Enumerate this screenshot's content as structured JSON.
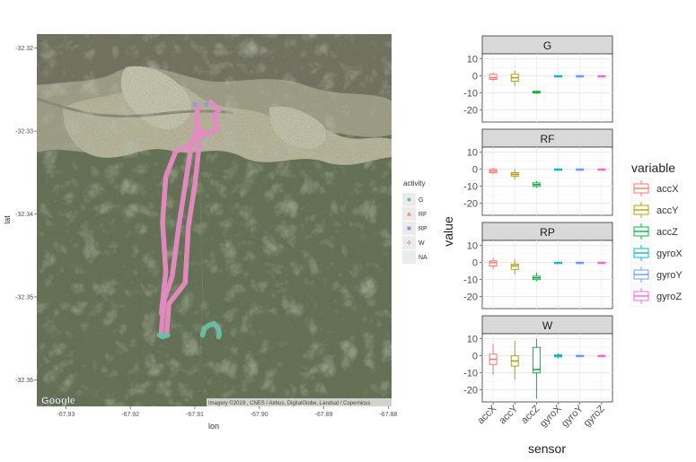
{
  "chart_data": [
    {
      "type": "scatter",
      "subtype": "map",
      "title": "",
      "xlabel": "lon",
      "ylabel": "lat",
      "xlim": [
        -67.9345,
        -67.8795
      ],
      "ylim": [
        -32.3632,
        -32.3183
      ],
      "x_ticks": [
        -67.93,
        -67.92,
        -67.91,
        -67.9,
        -67.89,
        -67.88
      ],
      "x_tick_labels": [
        "-67.93",
        "-67.92",
        "-67.91",
        "-67.90",
        "-67.89",
        "-67.88"
      ],
      "y_ticks": [
        -32.32,
        -32.33,
        -32.34,
        -32.35,
        -32.36
      ],
      "y_tick_labels": [
        "-32.32",
        "-32.33",
        "-32.34",
        "-32.35",
        "-32.36"
      ],
      "google_label": "Google",
      "attribution": "Imagery ©2019 , CNES / Airbus, DigitalGlobe, Landsat / Copernicus",
      "legend": {
        "title": "activity",
        "placement": "right",
        "items": [
          {
            "label": "G",
            "symbol": "●",
            "color": "#66c2a5"
          },
          {
            "label": "RF",
            "symbol": "▲",
            "color": "#fc8d62"
          },
          {
            "label": "RP",
            "symbol": "■",
            "color": "#8da0cb"
          },
          {
            "label": "W",
            "symbol": "+",
            "color": "#e78ac3"
          },
          {
            "label": "NA",
            "symbol": "",
            "color": "#bdbdbd"
          }
        ]
      },
      "series": [
        {
          "name": "W",
          "color": "#e78ac3",
          "path_a": [
            [
              -67.9152,
              -32.3543
            ],
            [
              -67.9148,
              -32.3505
            ],
            [
              -67.9135,
              -32.3475
            ],
            [
              -67.9125,
              -32.3415
            ],
            [
              -67.9115,
              -32.3365
            ],
            [
              -67.9105,
              -32.3315
            ],
            [
              -67.9095,
              -32.3295
            ],
            [
              -67.9085,
              -32.3305
            ],
            [
              -67.9065,
              -32.3297
            ],
            [
              -67.907,
              -32.3282
            ],
            [
              -67.9063,
              -32.3275
            ],
            [
              -67.9075,
              -32.3265
            ]
          ],
          "path_b": [
            [
              -67.9144,
              -32.3545
            ],
            [
              -67.914,
              -32.3508
            ],
            [
              -67.9115,
              -32.3483
            ],
            [
              -67.911,
              -32.3415
            ],
            [
              -67.91,
              -32.3365
            ],
            [
              -67.9093,
              -32.3315
            ],
            [
              -67.9098,
              -32.3285
            ],
            [
              -67.9095,
              -32.327
            ]
          ],
          "path_c": [
            [
              -67.9105,
              -32.3315
            ],
            [
              -67.913,
              -32.3325
            ],
            [
              -67.9145,
              -32.3355
            ],
            [
              -67.915,
              -32.341
            ],
            [
              -67.9145,
              -32.347
            ],
            [
              -67.9152,
              -32.352
            ]
          ]
        },
        {
          "name": "G",
          "color": "#66c2a5",
          "path_a": [
            [
              -67.9088,
              -32.3546
            ],
            [
              -67.9085,
              -32.3538
            ],
            [
              -67.9078,
              -32.3534
            ],
            [
              -67.907,
              -32.3532
            ],
            [
              -67.9064,
              -32.3538
            ],
            [
              -67.9062,
              -32.3544
            ],
            [
              -67.9063,
              -32.3548
            ]
          ],
          "path_b": [
            [
              -67.9155,
              -32.3546
            ],
            [
              -67.915,
              -32.3548
            ],
            [
              -67.9142,
              -32.3546
            ]
          ]
        },
        {
          "name": "RP",
          "color": "#8da0cb",
          "points": [
            [
              -67.91,
              -32.3268
            ],
            [
              -67.9082,
              -32.3268
            ]
          ]
        }
      ]
    },
    {
      "type": "boxplot",
      "title": "",
      "xlabel": "sensor",
      "ylabel": "value",
      "ylim": [
        -27,
        13
      ],
      "y_ticks": [
        10,
        0,
        -10,
        -20
      ],
      "y_tick_labels": [
        "10",
        "0",
        "-10",
        "-20"
      ],
      "categories": [
        "accX",
        "accY",
        "accZ",
        "gyroX",
        "gyroY",
        "gyroZ"
      ],
      "legend": {
        "title": "variable",
        "placement": "right",
        "items": [
          {
            "label": "accX",
            "color": "#f8766d"
          },
          {
            "label": "accY",
            "color": "#b79f00"
          },
          {
            "label": "accZ",
            "color": "#00ba38"
          },
          {
            "label": "gyroX",
            "color": "#00bfc4"
          },
          {
            "label": "gyroY",
            "color": "#619cff"
          },
          {
            "label": "gyroZ",
            "color": "#f564e3"
          }
        ]
      },
      "panels": [
        {
          "strip": "G",
          "boxes": [
            {
              "sensor": "accX",
              "min": -3,
              "q1": -2,
              "median": -1,
              "q3": 1,
              "max": 2
            },
            {
              "sensor": "accY",
              "min": -6,
              "q1": -3,
              "median": -1,
              "q3": 1,
              "max": 3
            },
            {
              "sensor": "accZ",
              "min": -10.5,
              "q1": -10,
              "median": -9.5,
              "q3": -9,
              "max": -8.5
            },
            {
              "sensor": "gyroX",
              "min": -0.4,
              "q1": -0.2,
              "median": 0,
              "q3": 0.2,
              "max": 0.4
            },
            {
              "sensor": "gyroY",
              "min": -0.4,
              "q1": -0.2,
              "median": 0,
              "q3": 0.2,
              "max": 0.4
            },
            {
              "sensor": "gyroZ",
              "min": -0.4,
              "q1": -0.2,
              "median": 0,
              "q3": 0.2,
              "max": 0.4
            }
          ]
        },
        {
          "strip": "RF",
          "boxes": [
            {
              "sensor": "accX",
              "min": -3,
              "q1": -2,
              "median": -1,
              "q3": 0,
              "max": 1
            },
            {
              "sensor": "accY",
              "min": -6,
              "q1": -4,
              "median": -3,
              "q3": -2,
              "max": 0
            },
            {
              "sensor": "accZ",
              "min": -11,
              "q1": -10,
              "median": -9,
              "q3": -8,
              "max": -7
            },
            {
              "sensor": "gyroX",
              "min": -0.4,
              "q1": -0.2,
              "median": 0,
              "q3": 0.2,
              "max": 0.4
            },
            {
              "sensor": "gyroY",
              "min": -0.4,
              "q1": -0.2,
              "median": 0,
              "q3": 0.2,
              "max": 0.4
            },
            {
              "sensor": "gyroZ",
              "min": -0.4,
              "q1": -0.2,
              "median": 0,
              "q3": 0.2,
              "max": 0.4
            }
          ]
        },
        {
          "strip": "RP",
          "boxes": [
            {
              "sensor": "accX",
              "min": -4,
              "q1": -2,
              "median": 0,
              "q3": 1,
              "max": 3
            },
            {
              "sensor": "accY",
              "min": -7,
              "q1": -4,
              "median": -2,
              "q3": -1,
              "max": 2
            },
            {
              "sensor": "accZ",
              "min": -11,
              "q1": -10,
              "median": -9,
              "q3": -8,
              "max": -6
            },
            {
              "sensor": "gyroX",
              "min": -0.4,
              "q1": -0.2,
              "median": 0,
              "q3": 0.2,
              "max": 0.4
            },
            {
              "sensor": "gyroY",
              "min": -0.4,
              "q1": -0.2,
              "median": 0,
              "q3": 0.2,
              "max": 0.4
            },
            {
              "sensor": "gyroZ",
              "min": -0.4,
              "q1": -0.2,
              "median": 0,
              "q3": 0.2,
              "max": 0.4
            }
          ]
        },
        {
          "strip": "W",
          "boxes": [
            {
              "sensor": "accX",
              "min": -11,
              "q1": -5,
              "median": -2,
              "q3": 1,
              "max": 7
            },
            {
              "sensor": "accY",
              "min": -14,
              "q1": -6,
              "median": -3,
              "q3": 0,
              "max": 9
            },
            {
              "sensor": "accZ",
              "min": -25,
              "q1": -10,
              "median": -8,
              "q3": 5,
              "max": 10
            },
            {
              "sensor": "gyroX",
              "min": -1.5,
              "q1": -0.6,
              "median": 0,
              "q3": 0.6,
              "max": 1.5
            },
            {
              "sensor": "gyroY",
              "min": -0.6,
              "q1": -0.3,
              "median": 0,
              "q3": 0.3,
              "max": 0.6
            },
            {
              "sensor": "gyroZ",
              "min": -0.8,
              "q1": -0.3,
              "median": 0,
              "q3": 0.3,
              "max": 0.8
            }
          ]
        }
      ]
    }
  ]
}
